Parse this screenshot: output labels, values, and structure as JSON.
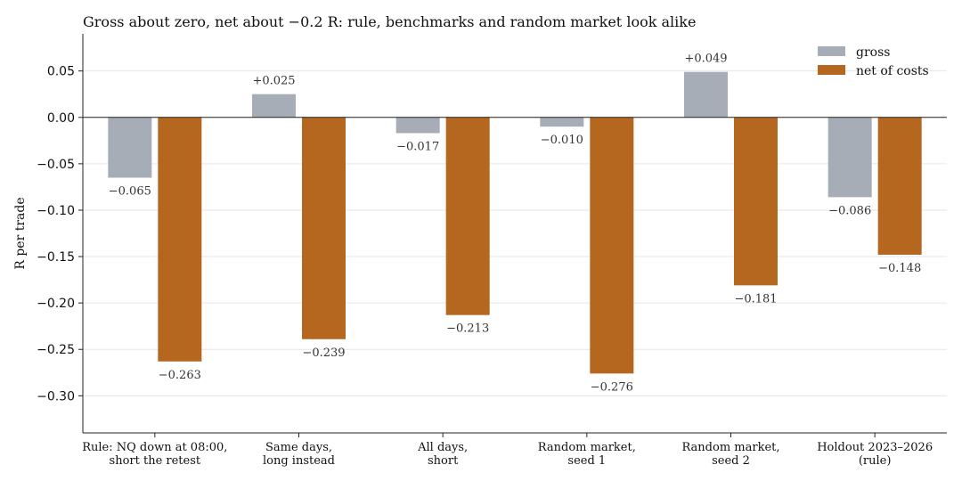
{
  "chart_data": {
    "type": "bar",
    "title": "Gross about zero, net about −0.2 R: rule, benchmarks and random market look alike",
    "xlabel": "",
    "ylabel": "R per trade",
    "ylim": [
      -0.34,
      0.09
    ],
    "yticks": [
      0.05,
      0.0,
      -0.05,
      -0.1,
      -0.15,
      -0.2,
      -0.25,
      -0.3
    ],
    "ytick_labels": [
      "0.05",
      "0.00",
      "−0.05",
      "−0.10",
      "−0.15",
      "−0.20",
      "−0.25",
      "−0.30"
    ],
    "grid": "horizontal",
    "legend_position": "top-right",
    "categories": [
      [
        "Rule: NQ down at 08:00,",
        "short the retest"
      ],
      [
        "Same days,",
        "long instead"
      ],
      [
        "All days,",
        "short"
      ],
      [
        "Random market,",
        "seed 1"
      ],
      [
        "Random market,",
        "seed 2"
      ],
      [
        "Holdout 2023–2026",
        "(rule)"
      ]
    ],
    "series": [
      {
        "name": "gross",
        "color": "#a7adb6",
        "values": [
          -0.065,
          0.025,
          -0.017,
          -0.01,
          0.049,
          -0.086
        ],
        "labels": [
          "−0.065",
          "+0.025",
          "−0.017",
          "−0.010",
          "+0.049",
          "−0.086"
        ]
      },
      {
        "name": "net of costs",
        "color": "#b5661f",
        "values": [
          -0.263,
          -0.239,
          -0.213,
          -0.276,
          -0.181,
          -0.148
        ],
        "labels": [
          "−0.263",
          "−0.239",
          "−0.213",
          "−0.276",
          "−0.181",
          "−0.148"
        ]
      }
    ]
  }
}
